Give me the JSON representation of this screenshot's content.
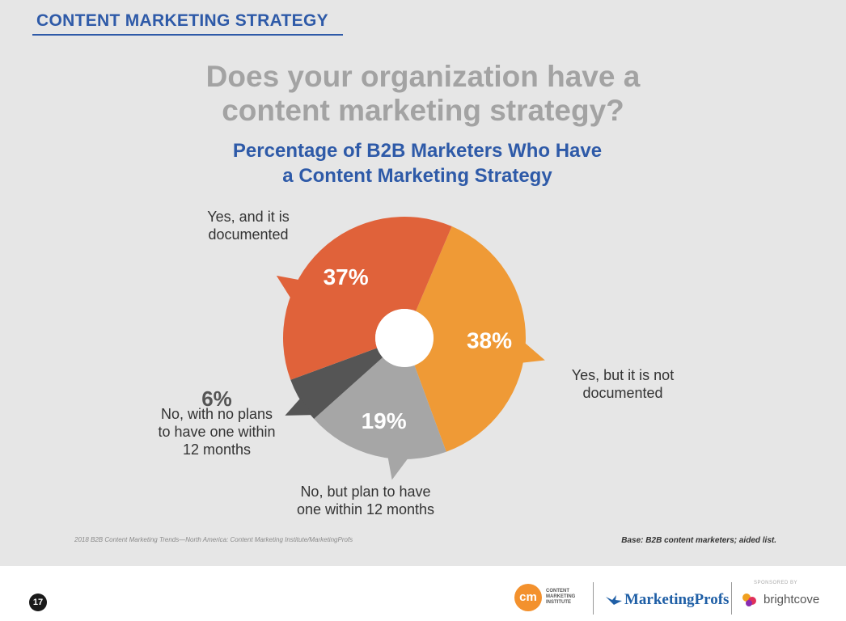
{
  "header": {
    "label": "CONTENT MARKETING STRATEGY"
  },
  "question": {
    "line1": "Does your organization have a",
    "line2": "content marketing strategy?"
  },
  "chart_data": {
    "type": "pie",
    "title": "Percentage of B2B Marketers Who Have a Content Marketing Strategy",
    "title_lines": [
      "Percentage of B2B Marketers Who Have",
      "a Content Marketing Strategy"
    ],
    "slices": [
      {
        "label": "Yes, but it is not documented",
        "label_lines": [
          "Yes, but it is not",
          "documented"
        ],
        "value": 38,
        "display": "38%",
        "color": "#ef9a36"
      },
      {
        "label": "No, but plan to have one within 12 months",
        "label_lines": [
          "No, but plan to have",
          "one within 12 months"
        ],
        "value": 19,
        "display": "19%",
        "color": "#a6a6a6"
      },
      {
        "label": "No, with no plans to have one within 12 months",
        "label_lines": [
          "No, with no plans",
          "to have one within",
          "12 months"
        ],
        "value": 6,
        "display": "6%",
        "color": "#555555"
      },
      {
        "label": "Yes, and it is documented",
        "label_lines": [
          "Yes, and it is",
          "documented"
        ],
        "value": 37,
        "display": "37%",
        "color": "#e0623a"
      }
    ],
    "legend": "none"
  },
  "footer": {
    "source": "2018 B2B Content Marketing Trends—North America: Content Marketing Institute/MarketingProfs",
    "base": "Base: B2B content marketers; aided list."
  },
  "page_number": "17",
  "logos": {
    "cmi_mark": "cm",
    "cmi_text": "CONTENT MARKETING INSTITUTE",
    "marketingprofs": "MarketingProfs",
    "sponsored_by": "SPONSORED BY",
    "brightcove": "brightcove"
  },
  "colors": {
    "accent_blue": "#2e5aa8",
    "question_gray": "#a3a3a3",
    "background": "#e6e6e6"
  }
}
